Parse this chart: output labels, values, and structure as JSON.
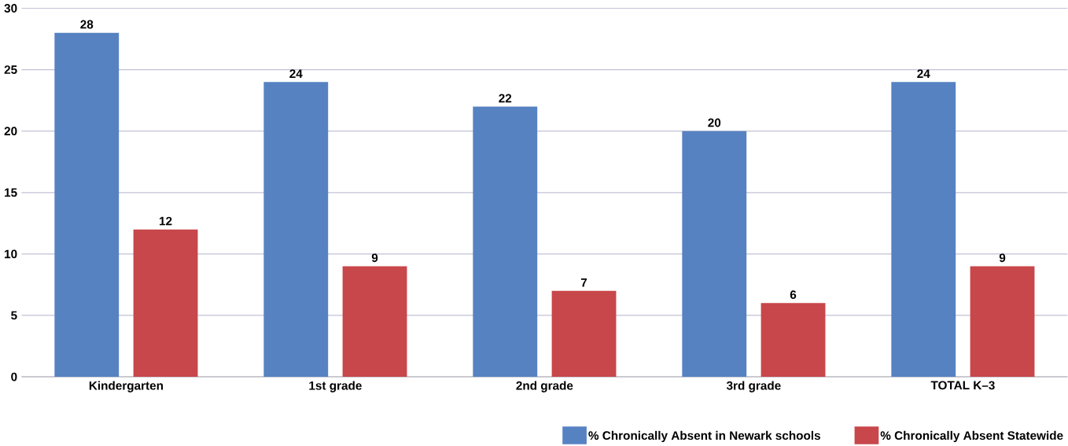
{
  "chart_data": {
    "type": "bar",
    "categories": [
      "Kindergarten",
      "1st grade",
      "2nd grade",
      "3rd grade",
      "TOTAL K–3"
    ],
    "series": [
      {
        "name": "% Chronically Absent in Newark schools",
        "color": "#5682c2",
        "values": [
          28,
          24,
          22,
          20,
          24
        ]
      },
      {
        "name": "% Chronically Absent Statewide",
        "color": "#c8474a",
        "values": [
          12,
          9,
          7,
          6,
          9
        ]
      }
    ],
    "ylim": [
      0,
      30
    ],
    "yticks": [
      0,
      5,
      10,
      15,
      20,
      25,
      30
    ],
    "grid": "y",
    "legend": "bottom right",
    "data_labels": true
  }
}
